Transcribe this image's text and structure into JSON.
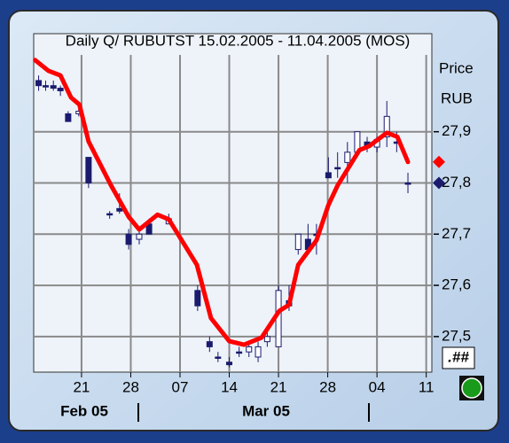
{
  "chart_data": {
    "type": "candlestick",
    "title": "Daily Q/ RUBUTST 15.02.2005 - 11.04.2005 (MOS)",
    "y_label": [
      "Price",
      "RUB"
    ],
    "month_labels": [
      "Feb 05",
      "Mar 05"
    ],
    "precision_button": ".##",
    "candle_color": "#1a1a6e",
    "grid": true,
    "x": [
      14.9,
      15.9,
      17.0,
      18.0,
      19.1,
      20.6,
      22.0,
      25.0,
      26.4,
      27.7,
      29.2,
      30.6,
      33.4,
      37.5,
      39.2,
      40.4,
      42.0,
      43.4,
      44.8,
      46.1,
      47.4,
      49.0,
      50.5,
      51.8,
      53.2,
      54.4,
      56.1,
      57.4,
      58.8,
      60.2,
      61.6,
      63.0,
      64.4,
      65.8,
      67.4
    ],
    "open": [
      28.0,
      27.99,
      27.99,
      27.985,
      27.935,
      27.935,
      27.85,
      27.74,
      27.75,
      27.7,
      27.69,
      27.72,
      27.72,
      27.59,
      27.49,
      27.46,
      27.45,
      27.47,
      27.47,
      27.46,
      27.49,
      27.48,
      27.57,
      27.67,
      27.69,
      27.7,
      27.82,
      27.83,
      27.84,
      27.86,
      27.88,
      27.87,
      27.89,
      27.88,
      27.8
    ],
    "high": [
      28.01,
      28.0,
      28.0,
      27.99,
      27.94,
      27.955,
      27.85,
      27.745,
      27.78,
      27.71,
      27.71,
      27.73,
      27.74,
      27.6,
      27.5,
      27.47,
      27.46,
      27.48,
      27.49,
      27.49,
      27.51,
      27.6,
      27.6,
      27.7,
      27.72,
      27.72,
      27.85,
      27.86,
      27.88,
      27.9,
      27.89,
      27.89,
      27.96,
      27.9,
      27.82
    ],
    "low": [
      27.98,
      27.98,
      27.98,
      27.97,
      27.92,
      27.93,
      27.79,
      27.73,
      27.74,
      27.67,
      27.68,
      27.7,
      27.72,
      27.55,
      27.47,
      27.45,
      27.44,
      27.46,
      27.46,
      27.45,
      27.48,
      27.48,
      27.55,
      27.66,
      27.67,
      27.66,
      27.81,
      27.81,
      27.8,
      27.86,
      27.86,
      27.86,
      27.87,
      27.86,
      27.78
    ],
    "close": [
      27.99,
      27.99,
      27.985,
      27.98,
      27.92,
      27.94,
      27.8,
      27.74,
      27.745,
      27.68,
      27.7,
      27.7,
      27.73,
      27.56,
      27.48,
      27.46,
      27.445,
      27.47,
      27.48,
      27.48,
      27.5,
      27.59,
      27.56,
      27.7,
      27.67,
      27.7,
      27.81,
      27.83,
      27.86,
      27.9,
      27.87,
      27.885,
      27.93,
      27.88,
      27.8
    ],
    "ma": {
      "color": "#ff0000",
      "x": [
        14.4,
        16.3,
        18.0,
        19.5,
        20.7,
        22.0,
        25.2,
        27.7,
        29.2,
        31.8,
        33.4,
        37.4,
        39.4,
        42.0,
        44.1,
        46.6,
        49.1,
        50.5,
        51.8,
        54.4,
        56.1,
        57.4,
        60.5,
        61.9,
        64.4,
        65.9,
        67.4
      ],
      "values": [
        28.04,
        28.019,
        28.01,
        27.967,
        27.953,
        27.881,
        27.795,
        27.734,
        27.709,
        27.738,
        27.729,
        27.64,
        27.536,
        27.491,
        27.484,
        27.498,
        27.55,
        27.562,
        27.64,
        27.688,
        27.757,
        27.795,
        27.864,
        27.872,
        27.898,
        27.89,
        27.841
      ]
    },
    "xlim": [
      14.2,
      70.8
    ],
    "xticks": [
      21,
      28,
      {
        "value": 35,
        "label": "07"
      },
      {
        "value": 42,
        "label": "14"
      },
      {
        "value": 49,
        "label": "21"
      },
      {
        "value": 56,
        "label": "28"
      },
      {
        "value": 63,
        "label": "04"
      },
      {
        "value": 70,
        "label": "11"
      }
    ],
    "ylim": [
      27.434,
      28.05
    ],
    "yticks": [
      {
        "value": 27.5,
        "label": "27,5"
      },
      {
        "value": 27.6,
        "label": "27,6"
      },
      {
        "value": 27.7,
        "label": "27,7"
      },
      {
        "value": 27.8,
        "label": "27,8"
      },
      {
        "value": 27.9,
        "label": "27,9"
      }
    ]
  }
}
